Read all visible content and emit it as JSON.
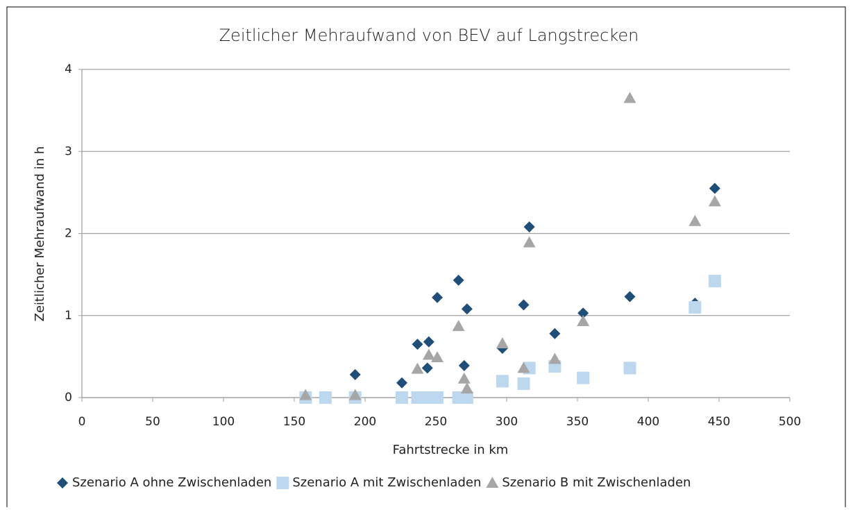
{
  "chart_data": {
    "type": "scatter",
    "title": "Zeitlicher Mehraufwand von BEV auf Langstrecken",
    "x_label": "Fahrtstrecke in km",
    "y_label": "Zeitlicher Mehraufwand in h",
    "xlim": [
      0,
      500
    ],
    "xticks": [
      0,
      50,
      100,
      150,
      200,
      250,
      300,
      350,
      400,
      450,
      500
    ],
    "ylim": [
      0,
      4
    ],
    "yticks": [
      0,
      1,
      2,
      3,
      4
    ],
    "grid": true,
    "legend": "bottom",
    "series": [
      {
        "name": "Szenario A ohne Zwischenladen",
        "color": "#1f4e79",
        "marker": "diamond",
        "x": [
          193,
          226,
          237,
          245,
          244,
          251,
          266,
          272,
          270,
          297,
          312,
          316,
          334,
          354,
          387,
          433,
          447
        ],
        "values": [
          0.28,
          0.18,
          0.65,
          0.68,
          0.36,
          1.22,
          1.43,
          1.08,
          0.39,
          0.6,
          1.13,
          2.08,
          0.78,
          1.03,
          1.23,
          1.15,
          2.55
        ]
      },
      {
        "name": "Szenario A mit Zwischenladen",
        "color": "#bdd7ee",
        "marker": "square",
        "x": [
          158,
          172,
          193,
          226,
          237,
          245,
          251,
          266,
          272,
          297,
          312,
          316,
          334,
          354,
          387,
          433,
          447
        ],
        "values": [
          0,
          0,
          0,
          0,
          0,
          0,
          0,
          0,
          0,
          0.2,
          0.17,
          0.36,
          0.38,
          0.24,
          0.36,
          1.1,
          1.42
        ]
      },
      {
        "name": "Szenario B mit Zwischenladen",
        "color": "#a6a6a6",
        "marker": "triangle",
        "x": [
          158,
          193,
          237,
          245,
          251,
          266,
          270,
          272,
          297,
          312,
          316,
          334,
          354,
          387,
          433,
          447
        ],
        "values": [
          0.03,
          0.03,
          0.35,
          0.52,
          0.49,
          0.87,
          0.23,
          0.11,
          0.66,
          0.36,
          1.89,
          0.47,
          0.93,
          3.65,
          2.15,
          2.39
        ]
      }
    ]
  }
}
